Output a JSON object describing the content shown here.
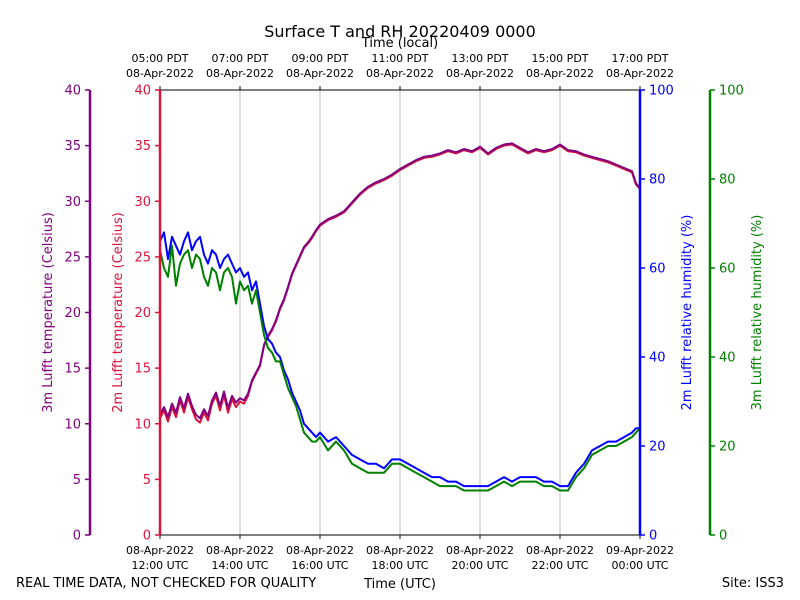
{
  "chart_data": {
    "type": "line",
    "title": "Surface T and RH 20220409 0000",
    "top_axis_label": "Time (local)",
    "xlabel": "Time (UTC)",
    "footer_left": "REAL TIME DATA, NOT CHECKED FOR QUALITY",
    "footer_right": "Site: ISS3",
    "colors": {
      "temp2m": "#dc143c",
      "temp3m": "#800080",
      "rh2m": "#0000ff",
      "rh3m": "#008000",
      "grid": "#b0b0b0",
      "axis": "#000000"
    },
    "xlim": [
      12,
      24
    ],
    "x_ticks": [
      {
        "x": 12,
        "bottom": [
          "08-Apr-2022",
          "12:00 UTC"
        ],
        "top": [
          "05:00 PDT",
          "08-Apr-2022"
        ]
      },
      {
        "x": 14,
        "bottom": [
          "08-Apr-2022",
          "14:00 UTC"
        ],
        "top": [
          "07:00 PDT",
          "08-Apr-2022"
        ]
      },
      {
        "x": 16,
        "bottom": [
          "08-Apr-2022",
          "16:00 UTC"
        ],
        "top": [
          "09:00 PDT",
          "08-Apr-2022"
        ]
      },
      {
        "x": 18,
        "bottom": [
          "08-Apr-2022",
          "18:00 UTC"
        ],
        "top": [
          "11:00 PDT",
          "08-Apr-2022"
        ]
      },
      {
        "x": 20,
        "bottom": [
          "08-Apr-2022",
          "20:00 UTC"
        ],
        "top": [
          "13:00 PDT",
          "08-Apr-2022"
        ]
      },
      {
        "x": 22,
        "bottom": [
          "08-Apr-2022",
          "22:00 UTC"
        ],
        "top": [
          "15:00 PDT",
          "08-Apr-2022"
        ]
      },
      {
        "x": 24,
        "bottom": [
          "09-Apr-2022",
          "00:00 UTC"
        ],
        "top": [
          "17:00 PDT",
          "08-Apr-2022"
        ]
      }
    ],
    "axes": {
      "temp3m": {
        "label": "3m Lufft temperature (Celsius)",
        "ylim": [
          0,
          40
        ],
        "ticks": [
          0,
          5,
          10,
          15,
          20,
          25,
          30,
          35,
          40
        ],
        "color": "#800080"
      },
      "temp2m": {
        "label": "2m Lufft temperature (Celsius)",
        "ylim": [
          0,
          40
        ],
        "ticks": [
          0,
          5,
          10,
          15,
          20,
          25,
          30,
          35,
          40
        ],
        "color": "#dc143c"
      },
      "rh2m": {
        "label": "2m Lufft relative humidity (%)",
        "ylim": [
          0,
          100
        ],
        "ticks": [
          0,
          20,
          40,
          60,
          80,
          100
        ],
        "color": "#0000ff"
      },
      "rh3m": {
        "label": "3m Lufft relative humidity (%)",
        "ylim": [
          0,
          100
        ],
        "ticks": [
          0,
          20,
          40,
          60,
          80,
          100
        ],
        "color": "#008000"
      }
    },
    "series": [
      {
        "name": "2m Lufft temperature",
        "axis": "temp2m",
        "color": "#dc143c",
        "x": [
          12.0,
          12.1,
          12.2,
          12.3,
          12.4,
          12.5,
          12.6,
          12.7,
          12.8,
          12.9,
          13.0,
          13.1,
          13.2,
          13.3,
          13.4,
          13.5,
          13.6,
          13.7,
          13.8,
          13.9,
          14.0,
          14.1,
          14.2,
          14.3,
          14.4,
          14.5,
          14.6,
          14.7,
          14.8,
          14.9,
          15.0,
          15.1,
          15.2,
          15.3,
          15.4,
          15.5,
          15.6,
          15.7,
          15.8,
          15.9,
          16.0,
          16.2,
          16.4,
          16.6,
          16.8,
          17.0,
          17.2,
          17.4,
          17.6,
          17.8,
          18.0,
          18.2,
          18.4,
          18.6,
          18.8,
          19.0,
          19.2,
          19.4,
          19.6,
          19.8,
          20.0,
          20.2,
          20.4,
          20.6,
          20.8,
          21.0,
          21.2,
          21.4,
          21.6,
          21.8,
          22.0,
          22.2,
          22.4,
          22.6,
          22.8,
          23.0,
          23.2,
          23.4,
          23.6,
          23.8,
          23.9,
          24.0
        ],
        "y": [
          10.5,
          11.2,
          10.2,
          11.5,
          10.6,
          12.1,
          11.0,
          12.4,
          11.3,
          10.4,
          10.1,
          11.0,
          10.3,
          11.8,
          12.5,
          11.2,
          12.6,
          11.0,
          12.2,
          11.5,
          12.0,
          11.8,
          12.5,
          13.8,
          14.5,
          15.2,
          17.0,
          17.8,
          18.4,
          19.2,
          20.3,
          21.1,
          22.2,
          23.4,
          24.2,
          25.0,
          25.8,
          26.2,
          26.7,
          27.3,
          27.8,
          28.3,
          28.6,
          29.0,
          29.8,
          30.6,
          31.2,
          31.6,
          31.9,
          32.3,
          32.8,
          33.2,
          33.6,
          33.9,
          34.0,
          34.2,
          34.5,
          34.3,
          34.6,
          34.4,
          34.8,
          34.2,
          34.7,
          35.0,
          35.1,
          34.7,
          34.3,
          34.6,
          34.4,
          34.6,
          35.0,
          34.5,
          34.4,
          34.1,
          33.9,
          33.7,
          33.5,
          33.2,
          32.9,
          32.6,
          31.5,
          31.1
        ]
      },
      {
        "name": "3m Lufft temperature",
        "axis": "temp3m",
        "color": "#800080",
        "x": [
          12.0,
          12.1,
          12.2,
          12.3,
          12.4,
          12.5,
          12.6,
          12.7,
          12.8,
          12.9,
          13.0,
          13.1,
          13.2,
          13.3,
          13.4,
          13.5,
          13.6,
          13.7,
          13.8,
          13.9,
          14.0,
          14.1,
          14.2,
          14.3,
          14.4,
          14.5,
          14.6,
          14.7,
          14.8,
          14.9,
          15.0,
          15.1,
          15.2,
          15.3,
          15.4,
          15.5,
          15.6,
          15.7,
          15.8,
          15.9,
          16.0,
          16.2,
          16.4,
          16.6,
          16.8,
          17.0,
          17.2,
          17.4,
          17.6,
          17.8,
          18.0,
          18.2,
          18.4,
          18.6,
          18.8,
          19.0,
          19.2,
          19.4,
          19.6,
          19.8,
          20.0,
          20.2,
          20.4,
          20.6,
          20.8,
          21.0,
          21.2,
          21.4,
          21.6,
          21.8,
          22.0,
          22.2,
          22.4,
          22.6,
          22.8,
          23.0,
          23.2,
          23.4,
          23.6,
          23.8,
          23.9,
          24.0
        ],
        "y": [
          10.8,
          11.5,
          10.6,
          11.8,
          11.0,
          12.4,
          11.4,
          12.7,
          11.6,
          10.8,
          10.5,
          11.3,
          10.7,
          12.1,
          12.8,
          11.6,
          12.9,
          11.4,
          12.5,
          11.9,
          12.3,
          12.1,
          12.7,
          13.9,
          14.6,
          15.3,
          17.1,
          17.9,
          18.5,
          19.3,
          20.4,
          21.2,
          22.3,
          23.5,
          24.3,
          25.1,
          25.9,
          26.3,
          26.8,
          27.4,
          27.9,
          28.4,
          28.7,
          29.1,
          29.9,
          30.7,
          31.3,
          31.7,
          32.0,
          32.4,
          32.9,
          33.3,
          33.7,
          34.0,
          34.1,
          34.3,
          34.6,
          34.4,
          34.7,
          34.5,
          34.9,
          34.3,
          34.8,
          35.1,
          35.2,
          34.8,
          34.4,
          34.7,
          34.5,
          34.7,
          35.1,
          34.6,
          34.5,
          34.2,
          34.0,
          33.8,
          33.6,
          33.3,
          33.0,
          32.7,
          31.6,
          31.2
        ]
      },
      {
        "name": "2m Lufft relative humidity",
        "axis": "rh2m",
        "color": "#0000ff",
        "x": [
          12.0,
          12.1,
          12.2,
          12.3,
          12.4,
          12.5,
          12.6,
          12.7,
          12.8,
          12.9,
          13.0,
          13.1,
          13.2,
          13.3,
          13.4,
          13.5,
          13.6,
          13.7,
          13.8,
          13.9,
          14.0,
          14.1,
          14.2,
          14.3,
          14.4,
          14.5,
          14.6,
          14.7,
          14.8,
          14.9,
          15.0,
          15.1,
          15.2,
          15.3,
          15.4,
          15.5,
          15.6,
          15.7,
          15.8,
          15.9,
          16.0,
          16.2,
          16.4,
          16.6,
          16.8,
          17.0,
          17.2,
          17.4,
          17.6,
          17.8,
          18.0,
          18.2,
          18.4,
          18.6,
          18.8,
          19.0,
          19.2,
          19.4,
          19.6,
          19.8,
          20.0,
          20.2,
          20.4,
          20.6,
          20.8,
          21.0,
          21.2,
          21.4,
          21.6,
          21.8,
          22.0,
          22.2,
          22.4,
          22.6,
          22.8,
          23.0,
          23.2,
          23.4,
          23.6,
          23.8,
          23.9,
          24.0
        ],
        "y": [
          66,
          68,
          62,
          67,
          65,
          63,
          66,
          68,
          64,
          66,
          67,
          63,
          61,
          64,
          63,
          60,
          62,
          63,
          61,
          59,
          60,
          58,
          59,
          55,
          57,
          52,
          47,
          44,
          43,
          41,
          40,
          37,
          35,
          32,
          30,
          28,
          25,
          24,
          23,
          22,
          23,
          21,
          22,
          20,
          18,
          17,
          16,
          16,
          15,
          17,
          17,
          16,
          15,
          14,
          13,
          13,
          12,
          12,
          11,
          11,
          11,
          11,
          12,
          13,
          12,
          13,
          13,
          13,
          12,
          12,
          11,
          11,
          14,
          16,
          19,
          20,
          21,
          21,
          22,
          23,
          24,
          24
        ]
      },
      {
        "name": "3m Lufft relative humidity",
        "axis": "rh3m",
        "color": "#008000",
        "x": [
          12.0,
          12.1,
          12.2,
          12.3,
          12.4,
          12.5,
          12.6,
          12.7,
          12.8,
          12.9,
          13.0,
          13.1,
          13.2,
          13.3,
          13.4,
          13.5,
          13.6,
          13.7,
          13.8,
          13.9,
          14.0,
          14.1,
          14.2,
          14.3,
          14.4,
          14.5,
          14.6,
          14.7,
          14.8,
          14.9,
          15.0,
          15.1,
          15.2,
          15.3,
          15.4,
          15.5,
          15.6,
          15.7,
          15.8,
          15.9,
          16.0,
          16.2,
          16.4,
          16.6,
          16.8,
          17.0,
          17.2,
          17.4,
          17.6,
          17.8,
          18.0,
          18.2,
          18.4,
          18.6,
          18.8,
          19.0,
          19.2,
          19.4,
          19.6,
          19.8,
          20.0,
          20.2,
          20.4,
          20.6,
          20.8,
          21.0,
          21.2,
          21.4,
          21.6,
          21.8,
          22.0,
          22.2,
          22.4,
          22.6,
          22.8,
          23.0,
          23.2,
          23.4,
          23.6,
          23.8,
          23.9,
          24.0
        ],
        "y": [
          64,
          60,
          58,
          65,
          56,
          61,
          63,
          64,
          60,
          63,
          62,
          58,
          56,
          60,
          59,
          55,
          59,
          60,
          58,
          52,
          57,
          55,
          56,
          52,
          55,
          50,
          45,
          42,
          41,
          39,
          39,
          36,
          33,
          31,
          29,
          26,
          23,
          22,
          21,
          21,
          22,
          19,
          21,
          19,
          16,
          15,
          14,
          14,
          14,
          16,
          16,
          15,
          14,
          13,
          12,
          11,
          11,
          11,
          10,
          10,
          10,
          10,
          11,
          12,
          11,
          12,
          12,
          12,
          11,
          11,
          10,
          10,
          13,
          15,
          18,
          19,
          20,
          20,
          21,
          22,
          23,
          24
        ]
      }
    ]
  }
}
